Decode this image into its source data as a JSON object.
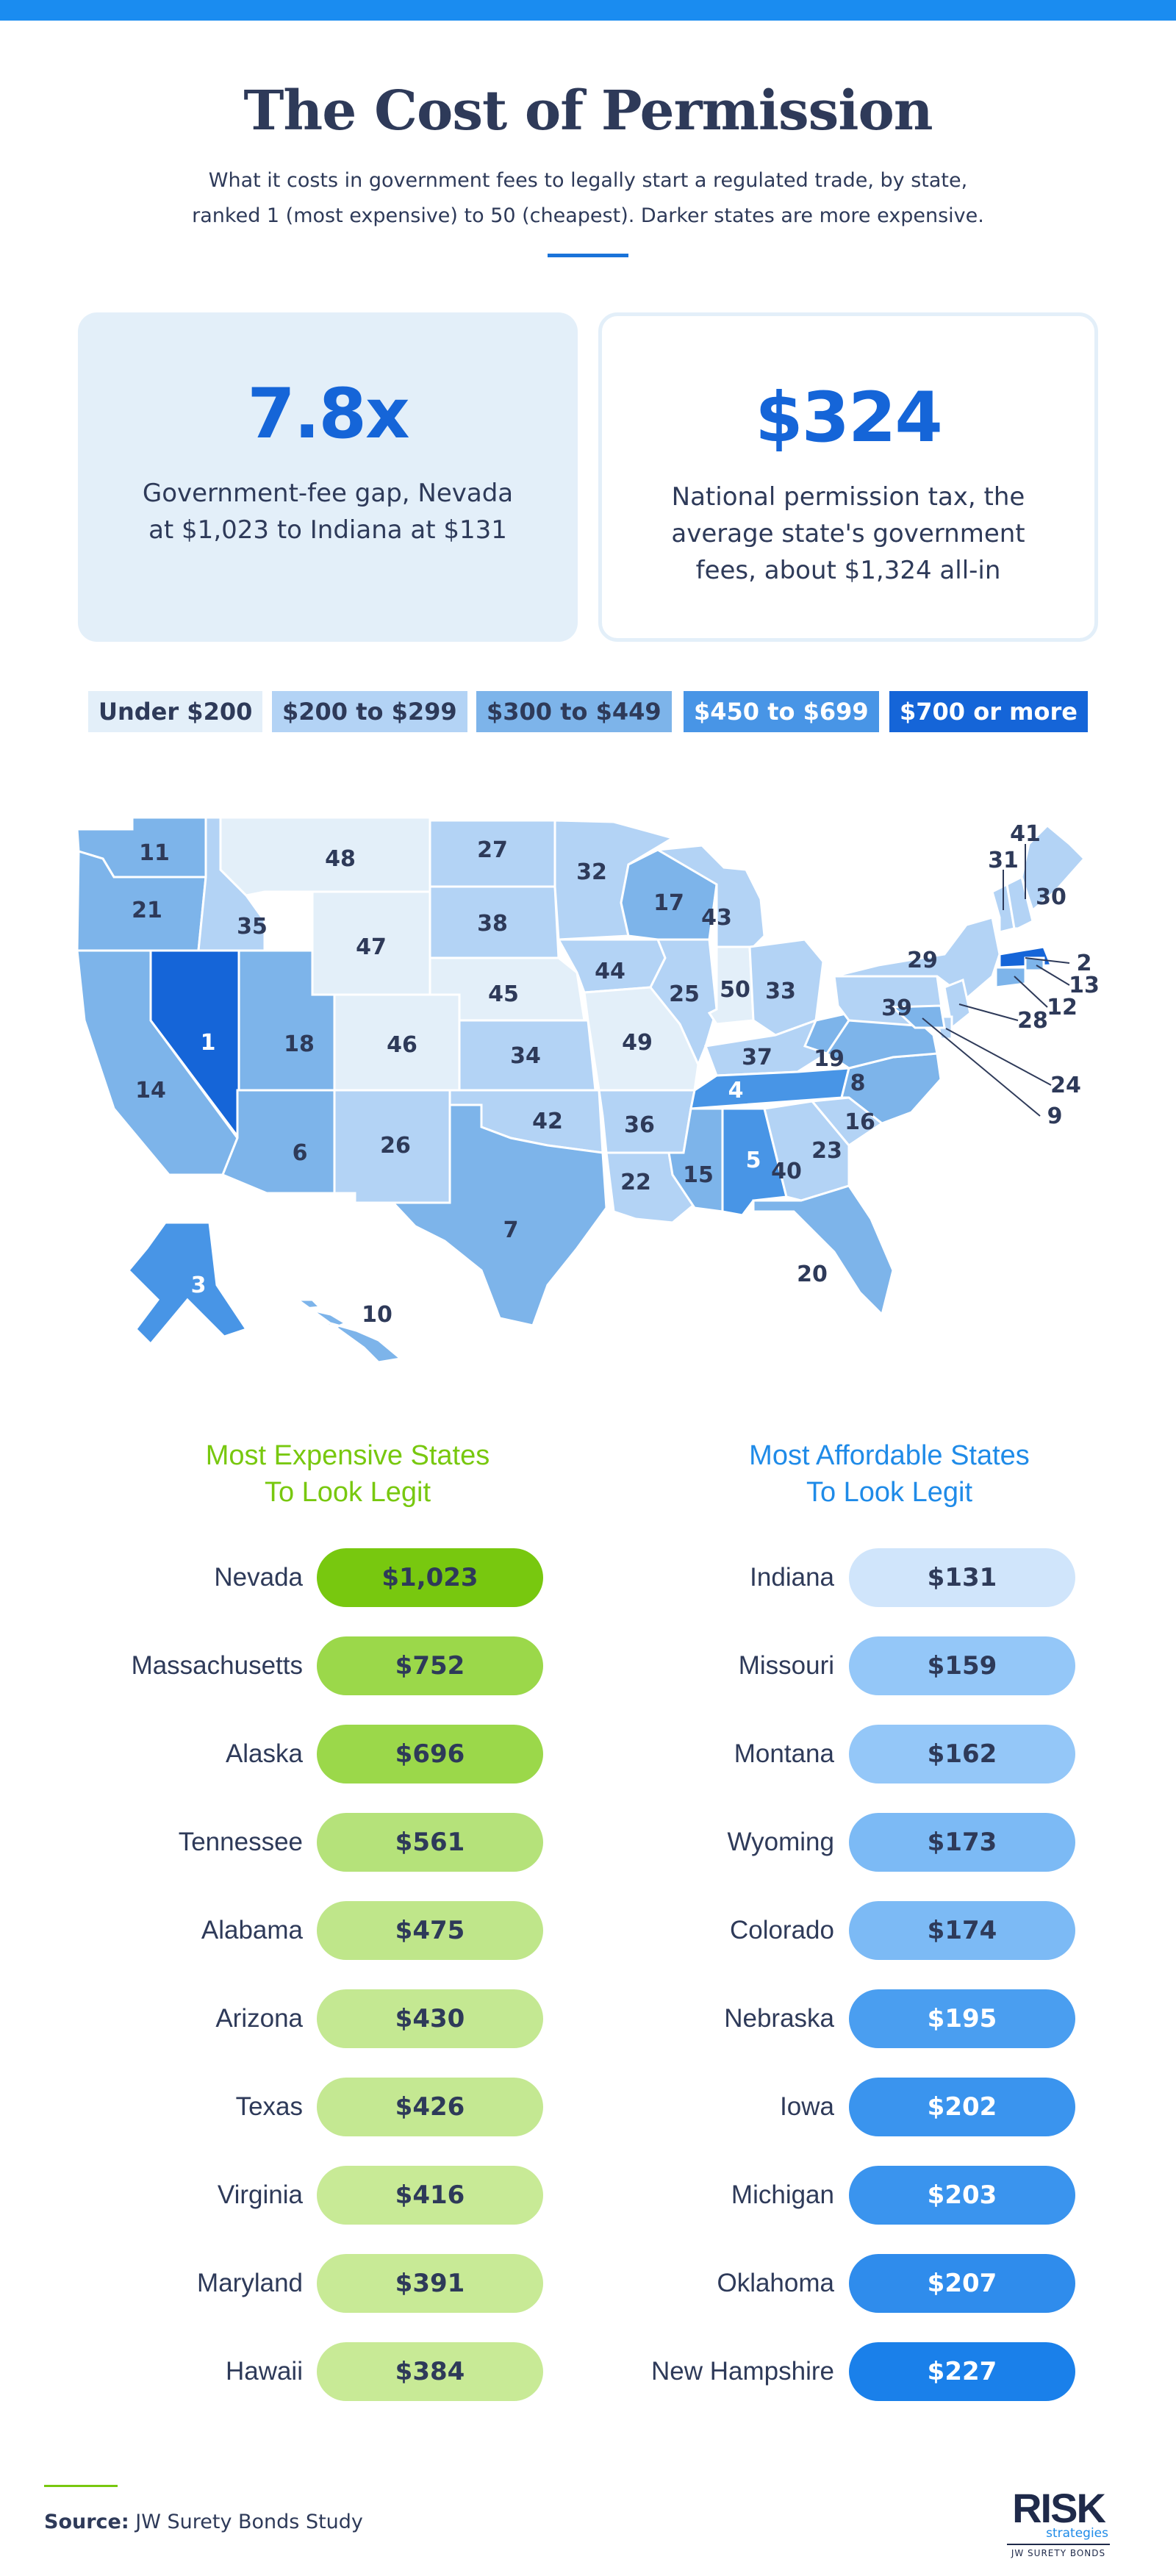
{
  "header": {
    "title": "The Cost of Permission",
    "subtitle_line1": "What it costs in government fees to legally start a regulated trade, by state,",
    "subtitle_line2": "ranked 1 (most expensive) to 50 (cheapest). Darker states are more expensive."
  },
  "stats": [
    {
      "value": "7.8x",
      "description": "Government-fee gap, Nevada at $1,023 to Indiana at $131"
    },
    {
      "value": "$324",
      "description": "National permission tax, the average state's government fees, about $1,324 all-in"
    }
  ],
  "legend": [
    {
      "label": "Under $200",
      "bg": "#e3eff9",
      "fg": "#2e3a59"
    },
    {
      "label": "$200 to $299",
      "bg": "#b3d3f5",
      "fg": "#2e3a59"
    },
    {
      "label": "$300 to $449",
      "bg": "#7db4ea",
      "fg": "#2e3a59"
    },
    {
      "label": "$450 to $699",
      "bg": "#4895e6",
      "fg": "#ffffff"
    },
    {
      "label": "$700 or more",
      "bg": "#1565d8",
      "fg": "#ffffff"
    }
  ],
  "map": {
    "states": [
      {
        "name": "WA",
        "rank": "11",
        "tier": 2
      },
      {
        "name": "OR",
        "rank": "21",
        "tier": 2
      },
      {
        "name": "CA",
        "rank": "14",
        "tier": 2
      },
      {
        "name": "NV",
        "rank": "1",
        "tier": 4
      },
      {
        "name": "ID",
        "rank": "35",
        "tier": 1
      },
      {
        "name": "MT",
        "rank": "48",
        "tier": 0
      },
      {
        "name": "WY",
        "rank": "47",
        "tier": 0
      },
      {
        "name": "UT",
        "rank": "18",
        "tier": 2
      },
      {
        "name": "AZ",
        "rank": "6",
        "tier": 2
      },
      {
        "name": "CO",
        "rank": "46",
        "tier": 0
      },
      {
        "name": "NM",
        "rank": "26",
        "tier": 1
      },
      {
        "name": "ND",
        "rank": "27",
        "tier": 1
      },
      {
        "name": "SD",
        "rank": "38",
        "tier": 1
      },
      {
        "name": "NE",
        "rank": "45",
        "tier": 0
      },
      {
        "name": "KS",
        "rank": "34",
        "tier": 1
      },
      {
        "name": "OK",
        "rank": "42",
        "tier": 1
      },
      {
        "name": "TX",
        "rank": "7",
        "tier": 2
      },
      {
        "name": "MN",
        "rank": "32",
        "tier": 1
      },
      {
        "name": "IA",
        "rank": "44",
        "tier": 1
      },
      {
        "name": "MO",
        "rank": "49",
        "tier": 0
      },
      {
        "name": "AR",
        "rank": "36",
        "tier": 1
      },
      {
        "name": "LA",
        "rank": "22",
        "tier": 1
      },
      {
        "name": "WI",
        "rank": "17",
        "tier": 2
      },
      {
        "name": "IL",
        "rank": "25",
        "tier": 1
      },
      {
        "name": "MI",
        "rank": "43",
        "tier": 1
      },
      {
        "name": "IN",
        "rank": "50",
        "tier": 0
      },
      {
        "name": "OH",
        "rank": "33",
        "tier": 1
      },
      {
        "name": "KY",
        "rank": "37",
        "tier": 1
      },
      {
        "name": "TN",
        "rank": "4",
        "tier": 3
      },
      {
        "name": "MS",
        "rank": "15",
        "tier": 2
      },
      {
        "name": "AL",
        "rank": "5",
        "tier": 3
      },
      {
        "name": "GA",
        "rank": "40",
        "tier": 1
      },
      {
        "name": "FL",
        "rank": "20",
        "tier": 2
      },
      {
        "name": "SC",
        "rank": "23",
        "tier": 1
      },
      {
        "name": "NC",
        "rank": "16",
        "tier": 2
      },
      {
        "name": "VA",
        "rank": "8",
        "tier": 2
      },
      {
        "name": "WV",
        "rank": "19",
        "tier": 2
      },
      {
        "name": "PA",
        "rank": "39",
        "tier": 1
      },
      {
        "name": "NY",
        "rank": "29",
        "tier": 1
      },
      {
        "name": "VT",
        "rank": "31",
        "tier": 1
      },
      {
        "name": "NH",
        "rank": "41",
        "tier": 1
      },
      {
        "name": "ME",
        "rank": "30",
        "tier": 1
      },
      {
        "name": "MA",
        "rank": "2",
        "tier": 4
      },
      {
        "name": "RI",
        "rank": "13",
        "tier": 2
      },
      {
        "name": "CT",
        "rank": "12",
        "tier": 2
      },
      {
        "name": "NJ",
        "rank": "28",
        "tier": 1
      },
      {
        "name": "DE",
        "rank": "24",
        "tier": 1
      },
      {
        "name": "MD",
        "rank": "9",
        "tier": 2
      },
      {
        "name": "AK",
        "rank": "3",
        "tier": 3
      },
      {
        "name": "HI",
        "rank": "10",
        "tier": 2
      }
    ]
  },
  "lists": {
    "expensive_title_line1": "Most Expensive States",
    "expensive_title_line2": "To Look Legit",
    "affordable_title_line1": "Most Affordable States",
    "affordable_title_line2": "To Look Legit",
    "expensive": [
      {
        "state": "Nevada",
        "amount": "$1,023",
        "color": "#78c80f"
      },
      {
        "state": "Massachusetts",
        "amount": "$752",
        "color": "#9bd84a"
      },
      {
        "state": "Alaska",
        "amount": "$696",
        "color": "#9bd84a"
      },
      {
        "state": "Tennessee",
        "amount": "$561",
        "color": "#b5e27a"
      },
      {
        "state": "Alabama",
        "amount": "$475",
        "color": "#bfe68a"
      },
      {
        "state": "Arizona",
        "amount": "$430",
        "color": "#c4e892"
      },
      {
        "state": "Texas",
        "amount": "$426",
        "color": "#c4e892"
      },
      {
        "state": "Virginia",
        "amount": "$416",
        "color": "#c8ea96"
      },
      {
        "state": "Maryland",
        "amount": "$391",
        "color": "#c8ea96"
      },
      {
        "state": "Hawaii",
        "amount": "$384",
        "color": "#c8ea96"
      }
    ],
    "affordable": [
      {
        "state": "Indiana",
        "amount": "$131",
        "color": "#d0e5fb",
        "fg": "#2e3a59"
      },
      {
        "state": "Missouri",
        "amount": "$159",
        "color": "#94c7f8",
        "fg": "#2e3a59"
      },
      {
        "state": "Montana",
        "amount": "$162",
        "color": "#94c7f8",
        "fg": "#2e3a59"
      },
      {
        "state": "Wyoming",
        "amount": "$173",
        "color": "#7cbaf5",
        "fg": "#2e3a59"
      },
      {
        "state": "Colorado",
        "amount": "$174",
        "color": "#7cbaf5",
        "fg": "#2e3a59"
      },
      {
        "state": "Nebraska",
        "amount": "$195",
        "color": "#4a9ef0",
        "fg": "#ffffff"
      },
      {
        "state": "Iowa",
        "amount": "$202",
        "color": "#3a94ee",
        "fg": "#ffffff"
      },
      {
        "state": "Michigan",
        "amount": "$203",
        "color": "#3a94ee",
        "fg": "#ffffff"
      },
      {
        "state": "Oklahoma",
        "amount": "$207",
        "color": "#2f8cec",
        "fg": "#ffffff"
      },
      {
        "state": "New Hampshire",
        "amount": "$227",
        "color": "#1a80ea",
        "fg": "#ffffff"
      }
    ]
  },
  "footer": {
    "source_label": "Source:",
    "source_text": "JW Surety Bonds Study",
    "logo_main": "RISK",
    "logo_sub": "strategies",
    "logo_tag": "JW SURETY BONDS"
  }
}
